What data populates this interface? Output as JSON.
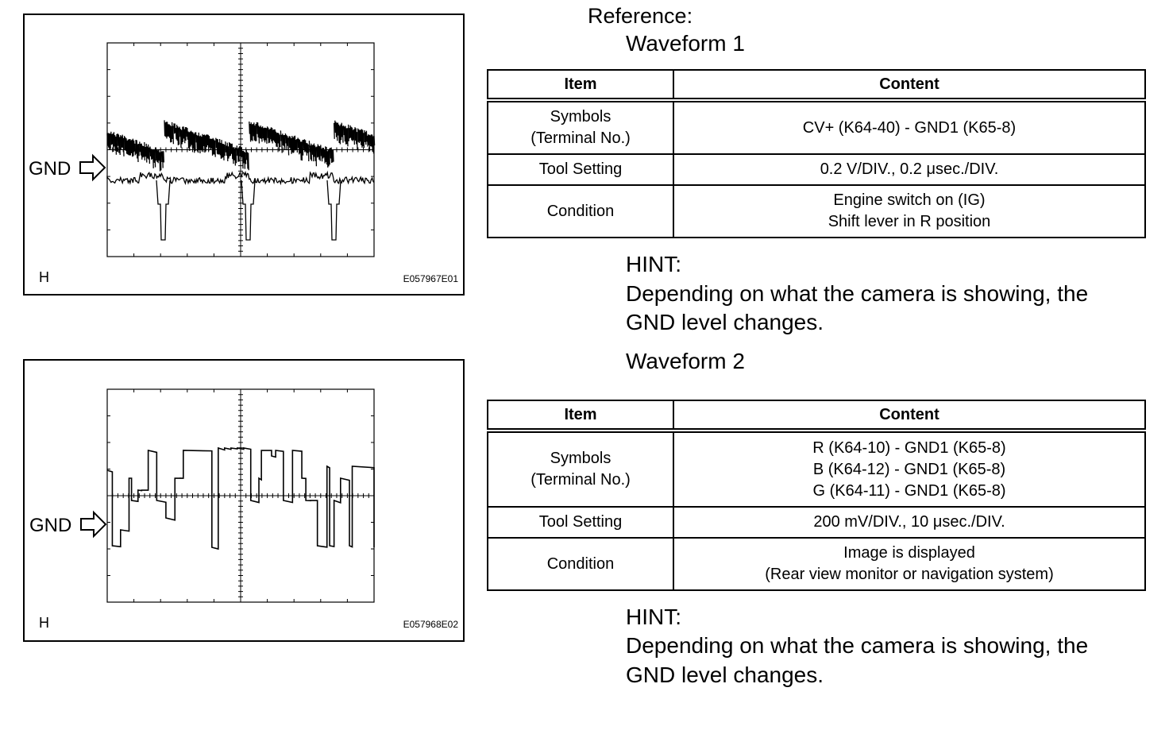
{
  "figures": [
    {
      "gnd_label": "GND",
      "corner_label": "H",
      "code": "E057967E01"
    },
    {
      "gnd_label": "GND",
      "corner_label": "H",
      "code": "E057968E02"
    }
  ],
  "reference": "Reference:",
  "waveforms": [
    {
      "title": "Waveform 1",
      "table": {
        "header": [
          "Item",
          "Content"
        ],
        "rows": [
          [
            [
              "Symbols",
              "(Terminal No.)"
            ],
            [
              "CV+ (K64-40) - GND1 (K65-8)"
            ]
          ],
          [
            [
              "Tool Setting"
            ],
            [
              "0.2 V/DIV., 0.2 μsec./DIV."
            ]
          ],
          [
            [
              "Condition"
            ],
            [
              "Engine switch on (IG)",
              "Shift lever in R position"
            ]
          ]
        ]
      },
      "hint": {
        "label": "HINT:",
        "text": [
          "Depending on what the camera is showing, the",
          "GND level changes."
        ]
      }
    },
    {
      "title": "Waveform 2",
      "table": {
        "header": [
          "Item",
          "Content"
        ],
        "rows": [
          [
            [
              "Symbols",
              "(Terminal No.)"
            ],
            [
              "R (K64-10) - GND1 (K65-8)",
              "B (K64-12) - GND1 (K65-8)",
              "G (K64-11) - GND1 (K65-8)"
            ]
          ],
          [
            [
              "Tool Setting"
            ],
            [
              "200 mV/DIV., 10 μsec./DIV."
            ]
          ],
          [
            [
              "Condition"
            ],
            [
              "Image is displayed",
              "(Rear view monitor or navigation system)"
            ]
          ]
        ]
      },
      "hint": {
        "label": "HINT:",
        "text": [
          "Depending on what the camera is showing, the",
          "GND level changes."
        ]
      }
    }
  ]
}
